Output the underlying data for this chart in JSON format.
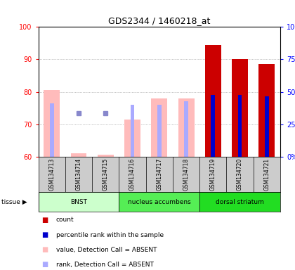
{
  "title": "GDS2344 / 1460218_at",
  "samples": [
    "GSM134713",
    "GSM134714",
    "GSM134715",
    "GSM134716",
    "GSM134717",
    "GSM134718",
    "GSM134719",
    "GSM134720",
    "GSM134721"
  ],
  "tissues": [
    {
      "label": "BNST",
      "start": 0,
      "end": 3,
      "color": "#ccffcc"
    },
    {
      "label": "nucleus accumbens",
      "start": 3,
      "end": 6,
      "color": "#55ee55"
    },
    {
      "label": "dorsal striatum",
      "start": 6,
      "end": 9,
      "color": "#22dd22"
    }
  ],
  "ylim_left": [
    60,
    100
  ],
  "ylim_right": [
    0,
    100
  ],
  "yticks_left": [
    60,
    70,
    80,
    90,
    100
  ],
  "yticks_right": [
    0,
    25,
    50,
    75,
    100
  ],
  "ytick_labels_right": [
    "0%",
    "25%",
    "50%",
    "75%",
    "100%"
  ],
  "bars_absent_value": [
    80.5,
    61.0,
    60.5,
    71.5,
    78.0,
    78.0,
    null,
    null,
    null
  ],
  "bars_absent_rank": [
    76.5,
    null,
    null,
    76.0,
    76.0,
    77.0,
    null,
    null,
    null
  ],
  "bars_present_value": [
    null,
    null,
    null,
    null,
    null,
    null,
    94.5,
    90.0,
    88.5
  ],
  "bars_present_rank": [
    null,
    null,
    null,
    null,
    null,
    null,
    79.0,
    79.0,
    78.5
  ],
  "rank_absent_dots": [
    null,
    73.5,
    73.5,
    null,
    null,
    null,
    null,
    null,
    null
  ],
  "bar_bottom": 60,
  "color_absent_bar": "#ffbbbb",
  "color_absent_rank_bar": "#aaaaff",
  "color_present_bar": "#cc0000",
  "color_present_rank_bar": "#0000cc",
  "color_rank_dot": "#8888cc",
  "background_color": "#ffffff",
  "grid_color": "#888888"
}
